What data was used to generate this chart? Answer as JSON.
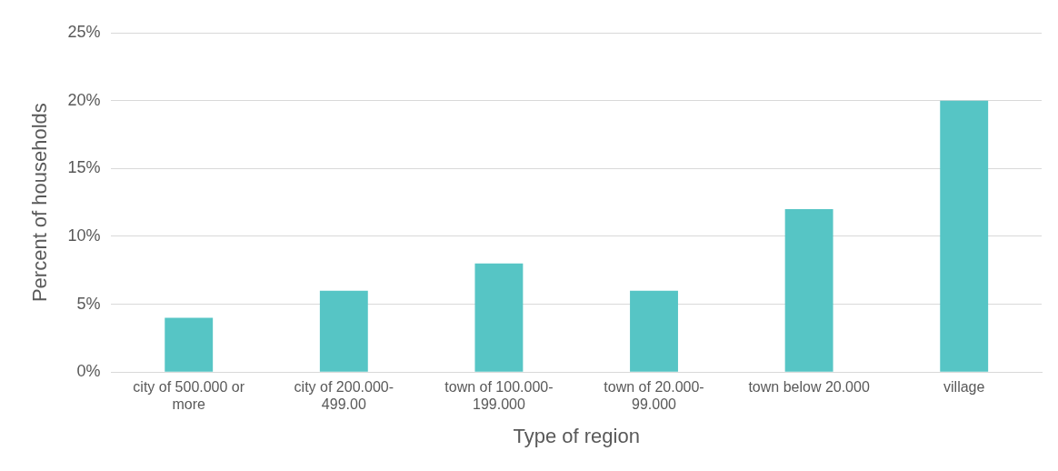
{
  "chart_data": {
    "type": "bar",
    "xlabel": "Type of region",
    "ylabel": "Percent of households",
    "categories": [
      "city of 500.000 or more",
      "city of 200.000-499.00",
      "town of 100.000-199.000",
      "town of 20.000-99.000",
      "town below 20.000",
      "village"
    ],
    "values": [
      4,
      6,
      8,
      6,
      12,
      20
    ],
    "color": "#56c5c5",
    "ylim": [
      0,
      25
    ],
    "yticks": [
      {
        "value": 0,
        "label": "0%"
      },
      {
        "value": 5,
        "label": "5%"
      },
      {
        "value": 10,
        "label": "10%"
      },
      {
        "value": 15,
        "label": "15%"
      },
      {
        "value": 20,
        "label": "20%"
      },
      {
        "value": 25,
        "label": "25%"
      }
    ],
    "grid": "y",
    "legend": false
  }
}
